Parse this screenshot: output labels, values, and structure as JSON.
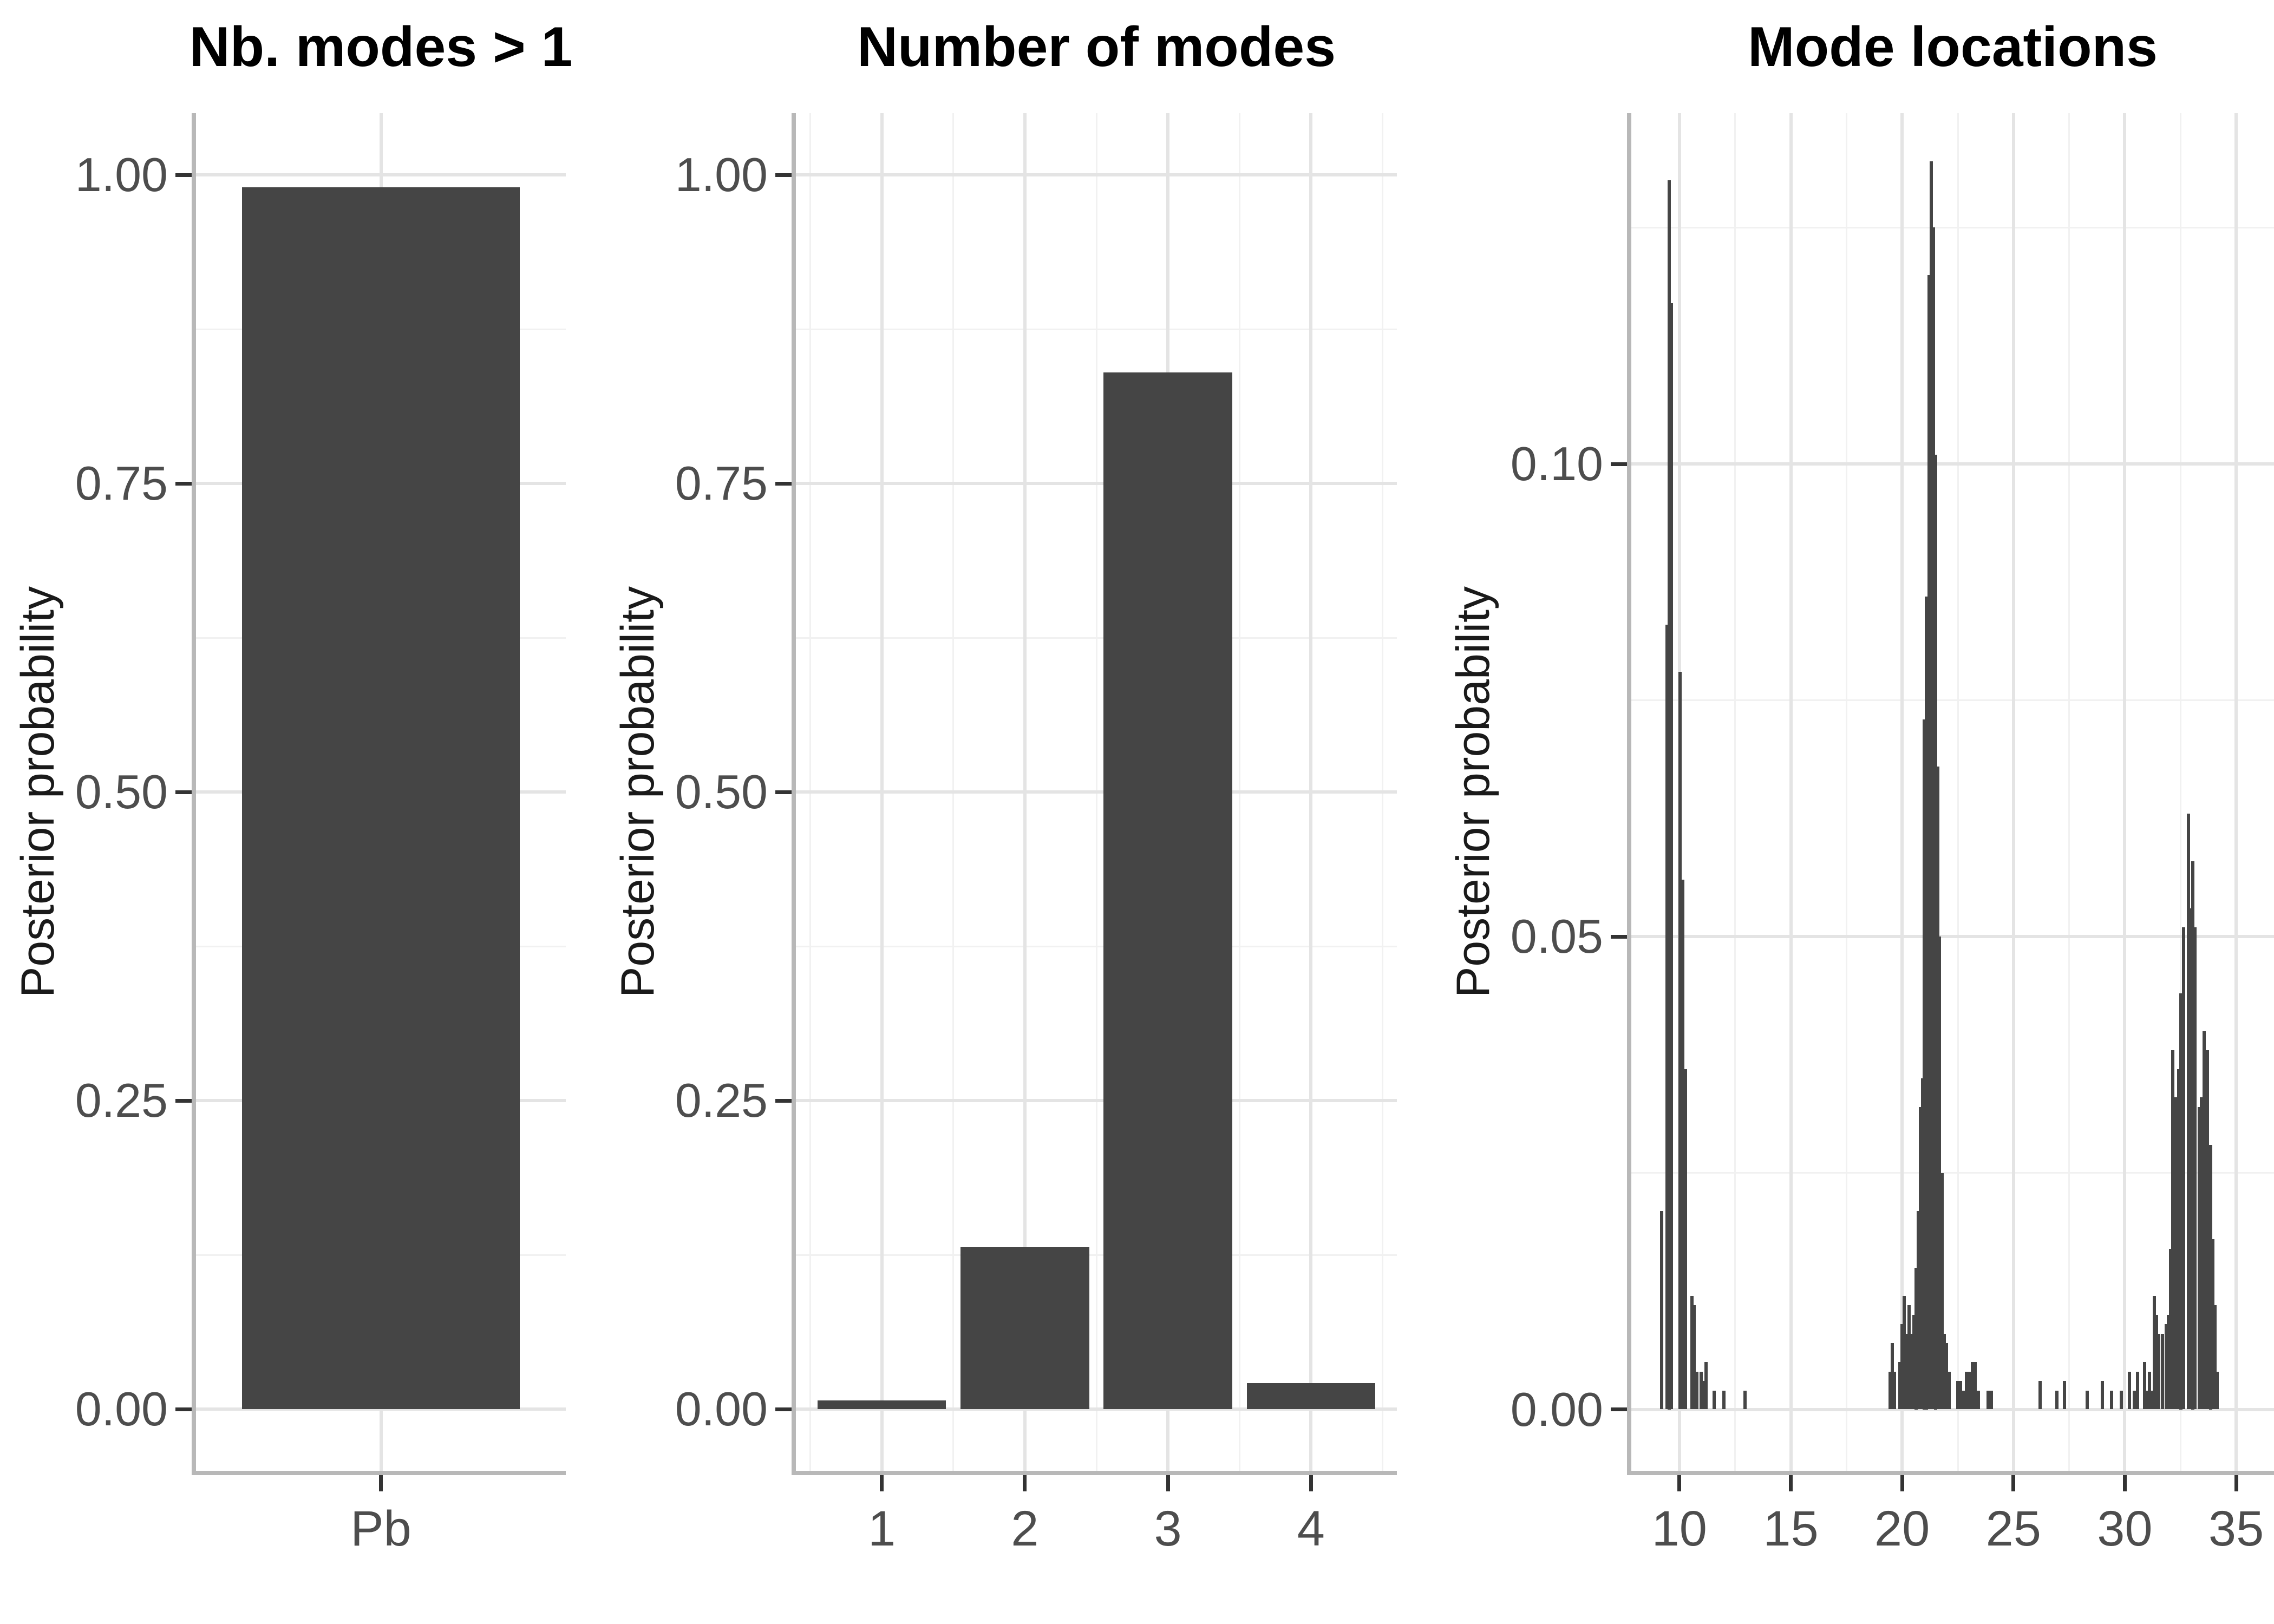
{
  "figure": {
    "colors": {
      "background": "#ffffff",
      "bar": "#454545",
      "grid_major": "#e4e4e4",
      "grid_minor": "#f1f1f1",
      "axis_line": "#b8b8b8",
      "tick": "#333333",
      "tick_label": "#4d4d4d",
      "axis_title": "#1a1a1a",
      "title": "#000000"
    }
  },
  "chart_data": [
    {
      "type": "bar",
      "title": "Nb. modes > 1",
      "ylabel": "Posterior probability",
      "xlabel": "",
      "legend": "none",
      "grid": "on",
      "categories": [
        "Pb"
      ],
      "values": [
        0.99
      ],
      "bar_width": 0.9,
      "xlim": [
        0.4,
        1.6
      ],
      "ylim": [
        -0.05,
        1.05
      ],
      "xticks": [
        {
          "v": 1,
          "label": "Pb"
        }
      ],
      "xminor": [],
      "yticks": [
        {
          "v": 0,
          "label": "0.00"
        },
        {
          "v": 0.25,
          "label": "0.25"
        },
        {
          "v": 0.5,
          "label": "0.50"
        },
        {
          "v": 0.75,
          "label": "0.75"
        },
        {
          "v": 1.0,
          "label": "1.00"
        }
      ],
      "yminor": [
        0.125,
        0.375,
        0.625,
        0.875
      ],
      "bars": [
        [
          1,
          0.99
        ]
      ]
    },
    {
      "type": "bar",
      "title": "Number of modes",
      "ylabel": "Posterior probability",
      "xlabel": "",
      "legend": "none",
      "grid": "on",
      "categories": [
        "1",
        "2",
        "3",
        "4"
      ],
      "values": [
        0.007,
        0.131,
        0.84,
        0.021
      ],
      "bar_width": 0.9,
      "xlim": [
        0.4,
        4.6
      ],
      "ylim": [
        -0.05,
        1.05
      ],
      "xticks": [
        {
          "v": 1,
          "label": "1"
        },
        {
          "v": 2,
          "label": "2"
        },
        {
          "v": 3,
          "label": "3"
        },
        {
          "v": 4,
          "label": "4"
        }
      ],
      "xminor": [
        0.5,
        1.5,
        2.5,
        3.5,
        4.5
      ],
      "yticks": [
        {
          "v": 0,
          "label": "0.00"
        },
        {
          "v": 0.25,
          "label": "0.25"
        },
        {
          "v": 0.5,
          "label": "0.50"
        },
        {
          "v": 0.75,
          "label": "0.75"
        },
        {
          "v": 1.0,
          "label": "1.00"
        }
      ],
      "yminor": [
        0.125,
        0.375,
        0.625,
        0.875
      ],
      "bars": [
        [
          1,
          0.007
        ],
        [
          2,
          0.131
        ],
        [
          3,
          0.84
        ],
        [
          4,
          0.021
        ]
      ]
    },
    {
      "type": "histogram",
      "title": "Mode locations",
      "ylabel": "Posterior probability",
      "xlabel": "",
      "legend": "none",
      "grid": "on",
      "bar_width": 0.146,
      "xlim": [
        7.84,
        36.7
      ],
      "ylim": [
        -0.0065,
        0.1371
      ],
      "xticks": [
        {
          "v": 10,
          "label": "10"
        },
        {
          "v": 15,
          "label": "15"
        },
        {
          "v": 20,
          "label": "20"
        },
        {
          "v": 25,
          "label": "25"
        },
        {
          "v": 30,
          "label": "30"
        },
        {
          "v": 35,
          "label": "35"
        }
      ],
      "xminor": [
        12.5,
        17.5,
        22.5,
        27.5,
        32.5
      ],
      "yticks": [
        {
          "v": 0,
          "label": "0.00"
        },
        {
          "v": 0.05,
          "label": "0.05"
        },
        {
          "v": 0.1,
          "label": "0.10"
        }
      ],
      "yminor": [
        0.025,
        0.075,
        0.125
      ],
      "bars": [
        [
          9.2,
          0.021
        ],
        [
          9.44,
          0.083
        ],
        [
          9.54,
          0.13
        ],
        [
          9.64,
          0.117
        ],
        [
          10.02,
          0.078
        ],
        [
          10.14,
          0.056
        ],
        [
          10.26,
          0.036
        ],
        [
          10.55,
          0.012
        ],
        [
          10.66,
          0.011
        ],
        [
          10.78,
          0.004
        ],
        [
          10.97,
          0.004
        ],
        [
          11.1,
          0.003
        ],
        [
          11.2,
          0.005
        ],
        [
          11.55,
          0.002
        ],
        [
          12.0,
          0.002
        ],
        [
          12.95,
          0.002
        ],
        [
          19.45,
          0.004
        ],
        [
          19.55,
          0.007
        ],
        [
          19.65,
          0.004
        ],
        [
          19.9,
          0.005
        ],
        [
          20.0,
          0.009
        ],
        [
          20.1,
          0.012
        ],
        [
          20.2,
          0.008
        ],
        [
          20.32,
          0.011
        ],
        [
          20.42,
          0.008
        ],
        [
          20.52,
          0.01
        ],
        [
          20.62,
          0.015
        ],
        [
          20.72,
          0.021
        ],
        [
          20.82,
          0.032
        ],
        [
          20.92,
          0.035
        ],
        [
          21.0,
          0.073
        ],
        [
          21.1,
          0.086
        ],
        [
          21.2,
          0.12
        ],
        [
          21.3,
          0.132
        ],
        [
          21.4,
          0.125
        ],
        [
          21.5,
          0.101
        ],
        [
          21.6,
          0.068
        ],
        [
          21.68,
          0.05
        ],
        [
          21.8,
          0.025
        ],
        [
          21.9,
          0.008
        ],
        [
          22.0,
          0.007
        ],
        [
          22.1,
          0.004
        ],
        [
          22.5,
          0.003
        ],
        [
          22.62,
          0.003
        ],
        [
          22.75,
          0.002
        ],
        [
          22.88,
          0.004
        ],
        [
          23.0,
          0.004
        ],
        [
          23.15,
          0.005
        ],
        [
          23.28,
          0.005
        ],
        [
          23.42,
          0.002
        ],
        [
          23.85,
          0.002
        ],
        [
          24.0,
          0.002
        ],
        [
          26.2,
          0.003
        ],
        [
          26.95,
          0.002
        ],
        [
          27.3,
          0.003
        ],
        [
          28.3,
          0.002
        ],
        [
          29.0,
          0.003
        ],
        [
          29.4,
          0.002
        ],
        [
          29.85,
          0.002
        ],
        [
          30.2,
          0.004
        ],
        [
          30.42,
          0.002
        ],
        [
          30.58,
          0.004
        ],
        [
          30.88,
          0.005
        ],
        [
          31.0,
          0.002
        ],
        [
          31.1,
          0.004
        ],
        [
          31.2,
          0.002
        ],
        [
          31.32,
          0.012
        ],
        [
          31.42,
          0.01
        ],
        [
          31.52,
          0.008
        ],
        [
          31.7,
          0.008
        ],
        [
          31.85,
          0.009
        ],
        [
          31.95,
          0.01
        ],
        [
          32.05,
          0.017
        ],
        [
          32.15,
          0.038
        ],
        [
          32.3,
          0.033
        ],
        [
          32.42,
          0.036
        ],
        [
          32.52,
          0.044
        ],
        [
          32.65,
          0.051
        ],
        [
          32.85,
          0.063
        ],
        [
          32.95,
          0.053
        ],
        [
          33.05,
          0.058
        ],
        [
          33.15,
          0.051
        ],
        [
          33.35,
          0.032
        ],
        [
          33.45,
          0.033
        ],
        [
          33.57,
          0.04
        ],
        [
          33.7,
          0.038
        ],
        [
          33.85,
          0.028
        ],
        [
          33.95,
          0.018
        ],
        [
          34.05,
          0.011
        ],
        [
          34.15,
          0.004
        ]
      ]
    }
  ]
}
